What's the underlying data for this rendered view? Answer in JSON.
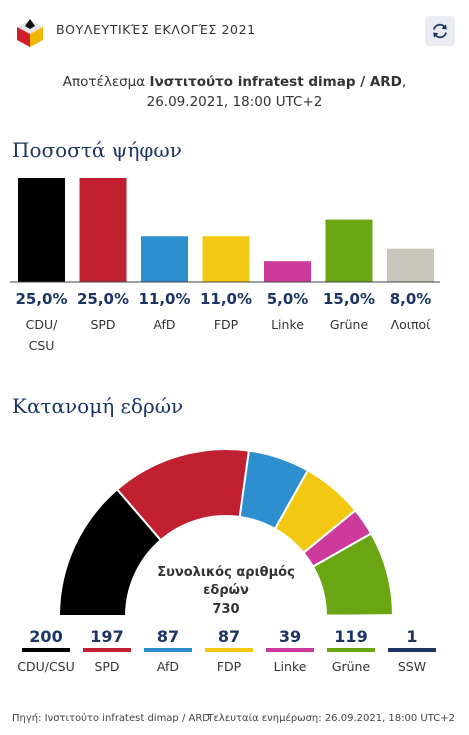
{
  "header": {
    "title": "ΒΟΥΛΕΥΤΙΚΈΣ ΕΚΛΟΓΈΣ 2021",
    "logo_icon": "ballot-box-icon",
    "refresh_icon": "refresh-icon"
  },
  "result": {
    "prefix": "Αποτέλεσμα",
    "institute": "Ινστιτούτο infratest dimap / ARD",
    "datetime": ", 26.09.2021, 18:00 UTC+2"
  },
  "sections": {
    "votes_title": "Ποσοστά ψήφων",
    "seats_title": "Κατανομή εδρών"
  },
  "chart_data": [
    {
      "type": "bar",
      "categories": [
        "CDU/\nCSU",
        "SPD",
        "AfD",
        "FDP",
        "Linke",
        "Grüne",
        "Λοιποί"
      ],
      "values": [
        25.0,
        25.0,
        11.0,
        11.0,
        5.0,
        15.0,
        8.0
      ],
      "value_labels": [
        "25,0%",
        "25,0%",
        "11,0%",
        "11,0%",
        "5,0%",
        "15,0%",
        "8,0%"
      ],
      "colors": [
        "#000000",
        "#c0202f",
        "#2d8fcd",
        "#f2c812",
        "#cc3a9b",
        "#6aa513",
        "#c9c7bc"
      ],
      "ylim": [
        0,
        25
      ]
    },
    {
      "type": "pie",
      "subtype": "semicircle",
      "categories": [
        "CDU/CSU",
        "SPD",
        "AfD",
        "FDP",
        "Linke",
        "Grüne",
        "SSW"
      ],
      "values": [
        200,
        197,
        87,
        87,
        39,
        119,
        1
      ],
      "colors": [
        "#000000",
        "#c0202f",
        "#2d8fcd",
        "#f2c812",
        "#cc3a9b",
        "#6aa513",
        "#1d3564"
      ],
      "center_label": "Συνολικός αριθμός εδρών",
      "total": "730"
    }
  ],
  "footer": {
    "source": "Πηγή: Ινστιτούτο infratest dimap / ARD",
    "updated": "Τελευταία ενημέρωση: 26.09.2021, 18:00 UTC+2"
  }
}
